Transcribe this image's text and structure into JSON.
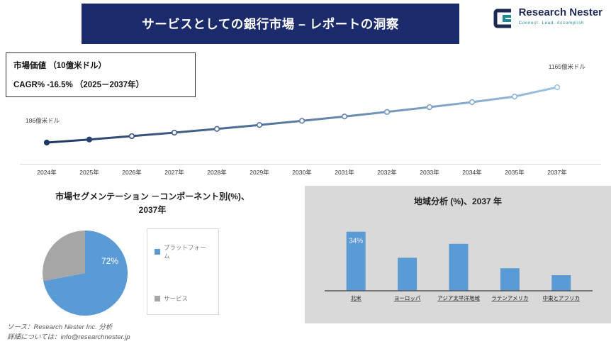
{
  "header": {
    "title": "サービスとしての銀行市場 – レポートの洞察",
    "logo_name": "Research Nester",
    "logo_tagline": "Connect. Lead. Accomplish"
  },
  "info_box": {
    "line1": "市場価値 （10億米ドル）",
    "line2": "CAGR% -16.5% （2025－2037年）"
  },
  "colors": {
    "banner_navy": "#1b2a6b",
    "accent_blue": "#5b9bd5",
    "slice_gray": "#a6a6a6",
    "panel_bg": "#d9d9d9",
    "logo_navy": "#1e2a56",
    "logo_teal": "#1d8a96"
  },
  "chart_data": [
    {
      "type": "line",
      "title": "市場価値 （10億米ドル）",
      "x": [
        "2024年",
        "2025年",
        "2026年",
        "2027年",
        "2028年",
        "2029年",
        "2030年",
        "2031年",
        "2032年",
        "2033年",
        "2034年",
        "2035年",
        "2037年"
      ],
      "values": [
        186,
        240,
        300,
        362,
        428,
        497,
        570,
        647,
        728,
        813,
        902,
        1000,
        1165
      ],
      "unit": "億米ドル",
      "start_label": "186億米ドル",
      "end_label": "1165億米ドル",
      "color_start": "#1f3864",
      "color_end": "#9dc3e6",
      "grid": false,
      "legend": false
    },
    {
      "type": "pie",
      "title": "市場セグメンテーション －コンポーネント別(%)、2037年",
      "labels": [
        "プラットフォーム",
        "サービス"
      ],
      "values": [
        72,
        28
      ],
      "colors": [
        "#5b9bd5",
        "#a6a6a6"
      ],
      "data_label": "72%",
      "legend_position": "right"
    },
    {
      "type": "bar",
      "title": "地域分析 (%)、2037 年",
      "categories": [
        "北米",
        "ヨーロッパ",
        "アジア太平洋地域",
        "ラテンアメリカ",
        "中東とアフリカ"
      ],
      "values": [
        34,
        19,
        27,
        13,
        9
      ],
      "ylim": [
        0,
        40
      ],
      "data_label": "34%",
      "color": "#5b9bd5",
      "grid": false
    }
  ],
  "footer": {
    "line1": "ソース：Research Nester Inc. 分析",
    "line2": "詳細については：info@researchnester.jp"
  }
}
